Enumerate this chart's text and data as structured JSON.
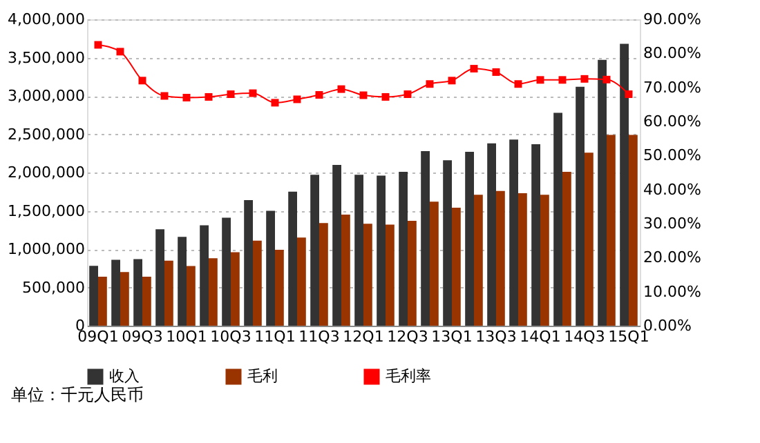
{
  "chart_data": {
    "type": "bar",
    "categories": [
      "09Q1",
      null,
      "09Q3",
      null,
      "10Q1",
      null,
      "10Q3",
      null,
      "11Q1",
      null,
      "11Q3",
      null,
      "12Q1",
      null,
      "12Q3",
      null,
      "13Q1",
      null,
      "13Q3",
      null,
      "14Q1",
      null,
      "14Q3",
      null,
      "15Q1"
    ],
    "series": [
      {
        "name": "收入",
        "color": "#333333",
        "values": [
          782000,
          860000,
          870000,
          1260000,
          1160000,
          1310000,
          1410000,
          1640000,
          1500000,
          1750000,
          1970000,
          2100000,
          1970000,
          1960000,
          2010000,
          2280000,
          2160000,
          2270000,
          2380000,
          2430000,
          2370000,
          2780000,
          3120000,
          3470000,
          3680000
        ]
      },
      {
        "name": "毛利",
        "color": "#993300",
        "values": [
          640000,
          700000,
          640000,
          850000,
          780000,
          880000,
          960000,
          1110000,
          990000,
          1150000,
          1340000,
          1450000,
          1330000,
          1320000,
          1370000,
          1620000,
          1540000,
          1710000,
          1760000,
          1730000,
          1710000,
          2010000,
          2260000,
          2490000,
          2490000
        ]
      },
      {
        "name": "毛利率",
        "color": "#ff0000",
        "type": "line",
        "axis": "y2",
        "marker": "square",
        "values": [
          82.5,
          80.5,
          72,
          67.5,
          67,
          67.2,
          68,
          68.3,
          65.5,
          66.5,
          67.8,
          69.5,
          67.7,
          67.2,
          68,
          71,
          72,
          75.5,
          74.5,
          71,
          72.2,
          72.2,
          72.5,
          72.3,
          68
        ]
      }
    ],
    "ylim": [
      0,
      4000000
    ],
    "yticks": [
      {
        "value": 0,
        "label": "0"
      },
      {
        "value": 500000,
        "label": "500,000"
      },
      {
        "value": 1000000,
        "label": "1,000,000"
      },
      {
        "value": 1500000,
        "label": "1,500,000"
      },
      {
        "value": 2000000,
        "label": "2,000,000"
      },
      {
        "value": 2500000,
        "label": "2,500,000"
      },
      {
        "value": 3000000,
        "label": "3,000,000"
      },
      {
        "value": 3500000,
        "label": "3,500,000"
      },
      {
        "value": 4000000,
        "label": "4,000,000"
      }
    ],
    "y2lim": [
      0,
      90
    ],
    "y2ticks": [
      {
        "value": 0,
        "label": "0.00%"
      },
      {
        "value": 10,
        "label": "10.00%"
      },
      {
        "value": 20,
        "label": "20.00%"
      },
      {
        "value": 30,
        "label": "30.00%"
      },
      {
        "value": 40,
        "label": "40.00%"
      },
      {
        "value": 50,
        "label": "50.00%"
      },
      {
        "value": 60,
        "label": "60.00%"
      },
      {
        "value": 70,
        "label": "70.00%"
      },
      {
        "value": 80,
        "label": "80.00%"
      },
      {
        "value": 90,
        "label": "90.00%"
      }
    ],
    "grid": "y",
    "legend": "bottom",
    "annotations": [
      "单位：千元人民币"
    ]
  }
}
